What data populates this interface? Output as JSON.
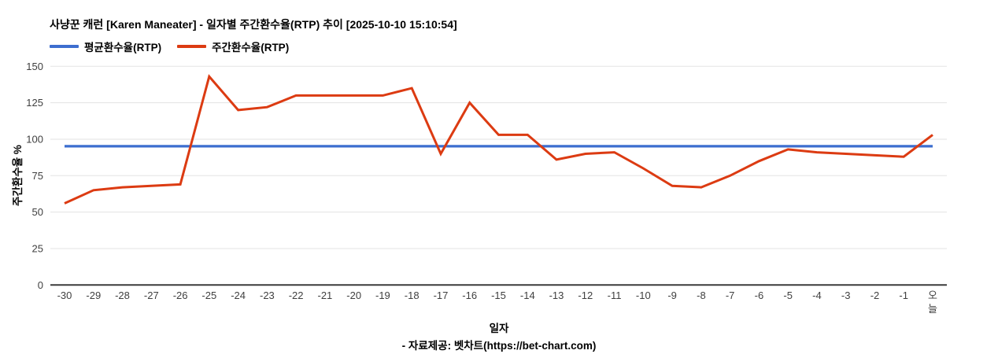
{
  "title": "사냥꾼 캐런 [Karen Maneater] - 일자별 주간환수율(RTP) 추이 [2025-10-10 15:10:54]",
  "legend": {
    "average": {
      "label": "평균환수율(RTP)",
      "color": "#3d6ecf"
    },
    "weekly": {
      "label": "주간환수율(RTP)",
      "color": "#dc3b12"
    }
  },
  "footer": "- 자료제공: 벳차트(https://bet-chart.com)",
  "chart_data": {
    "type": "line",
    "title": "사냥꾼 캐런 [Karen Maneater] - 일자별 주간환수율(RTP) 추이 [2025-10-10 15:10:54]",
    "xlabel": "일자",
    "ylabel": "주간환수율 %",
    "ylim": [
      0,
      150
    ],
    "y_ticks": [
      0,
      25,
      50,
      75,
      100,
      125,
      150
    ],
    "grid": true,
    "legend_position": "top-left",
    "categories": [
      "-30",
      "-29",
      "-28",
      "-27",
      "-26",
      "-25",
      "-24",
      "-23",
      "-22",
      "-21",
      "-20",
      "-19",
      "-18",
      "-17",
      "-16",
      "-15",
      "-14",
      "-13",
      "-12",
      "-11",
      "-10",
      "-9",
      "-8",
      "-7",
      "-6",
      "-5",
      "-4",
      "-3",
      "-2",
      "-1",
      "오늘"
    ],
    "series": [
      {
        "name": "평균환수율(RTP)",
        "color": "#3d6ecf",
        "style": "constant-line",
        "value": 95.2
      },
      {
        "name": "주간환수율(RTP)",
        "color": "#dc3b12",
        "values": [
          56,
          65,
          67,
          68,
          69,
          143,
          120,
          122,
          130,
          130,
          130,
          130,
          135,
          90,
          125,
          103,
          103,
          86,
          90,
          91,
          80,
          68,
          67,
          75,
          85,
          93,
          91,
          90,
          89,
          88,
          103
        ]
      }
    ]
  }
}
